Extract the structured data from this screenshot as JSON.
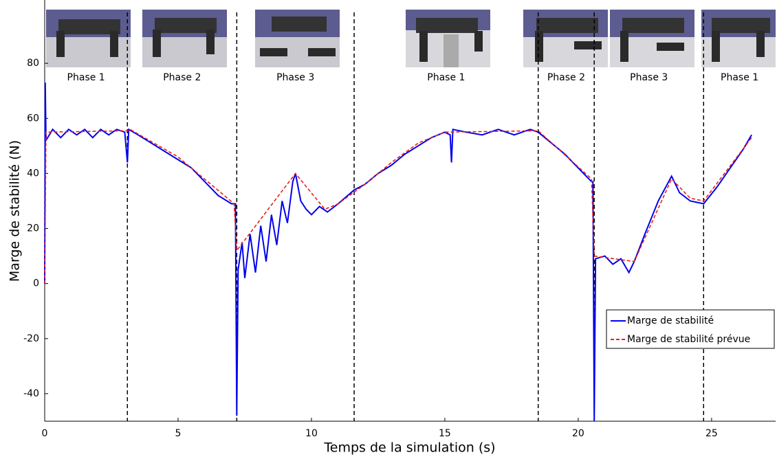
{
  "chart_data": {
    "type": "line",
    "xlabel": "Temps de la simulation (s)",
    "ylabel": "Marge de stabilité (N)",
    "xlim": [
      0,
      27.4
    ],
    "ylim": [
      -50,
      103
    ],
    "xticks": [
      0,
      5,
      10,
      15,
      20,
      25
    ],
    "yticks": [
      -40,
      -20,
      0,
      20,
      40,
      60,
      80
    ],
    "phase_boundaries": [
      3.1,
      7.2,
      11.6,
      18.5,
      20.6,
      24.7
    ],
    "phase_labels": [
      "Phase 1",
      "Phase 2",
      "Phase 3",
      "Phase 1",
      "Phase 2",
      "Phase 3",
      "Phase 1"
    ],
    "legend": "lower right",
    "series": [
      {
        "name": "Marge de stabilité",
        "color": "#0000ee",
        "dashed": false,
        "x": [
          0,
          0.02,
          0.05,
          0.3,
          0.6,
          0.9,
          1.2,
          1.5,
          1.8,
          2.1,
          2.4,
          2.7,
          3.0,
          3.1,
          3.15,
          3.5,
          4,
          4.5,
          5,
          5.5,
          6,
          6.5,
          7.0,
          7.15,
          7.2,
          7.25,
          7.4,
          7.5,
          7.7,
          7.9,
          8.1,
          8.3,
          8.5,
          8.7,
          8.9,
          9.1,
          9.3,
          9.4,
          9.6,
          9.8,
          10,
          10.3,
          10.6,
          11,
          11.6,
          12,
          12.5,
          13,
          13.5,
          14,
          14.5,
          15,
          15.2,
          15.25,
          15.3,
          15.8,
          16.4,
          17,
          17.6,
          18.2,
          18.5,
          19,
          19.5,
          20,
          20.5,
          20.55,
          20.6,
          20.65,
          21,
          21.3,
          21.6,
          21.9,
          22.1,
          22.5,
          23,
          23.5,
          23.8,
          24.2,
          24.7,
          25.2,
          25.7,
          26.2,
          26.5
        ],
        "values": [
          0,
          73,
          52,
          56,
          53,
          56,
          54,
          56,
          53,
          56,
          54,
          56,
          55,
          44,
          56,
          54,
          51,
          48,
          45,
          42,
          37,
          32,
          29,
          29,
          -48,
          5,
          15,
          2,
          18,
          4,
          21,
          8,
          25,
          14,
          30,
          22,
          37,
          40,
          30,
          27,
          25,
          28,
          26,
          29,
          34,
          36,
          40,
          43,
          47,
          50,
          53,
          55,
          54,
          44,
          56,
          55,
          54,
          56,
          54,
          56,
          55,
          51,
          47,
          42,
          37,
          37,
          -50,
          9,
          10,
          7,
          9,
          4,
          8,
          18,
          30,
          39,
          33,
          30,
          29,
          35,
          42,
          49,
          54
        ]
      },
      {
        "name": "Marge de stabilité prévue",
        "color": "#e8201a",
        "dashed": true,
        "x": [
          0,
          0.05,
          3.1,
          3.2,
          5,
          7.1,
          7.2,
          9.4,
          10.5,
          11,
          12,
          13,
          14,
          15,
          18.5,
          20.5,
          20.6,
          22.1,
          23.5,
          24.2,
          24.7,
          26.5
        ],
        "values": [
          0,
          55,
          55.5,
          56,
          46,
          29,
          12,
          40,
          27,
          29,
          36,
          44,
          51,
          55,
          55.5,
          38,
          10,
          8,
          38,
          31,
          30,
          53
        ]
      }
    ]
  }
}
